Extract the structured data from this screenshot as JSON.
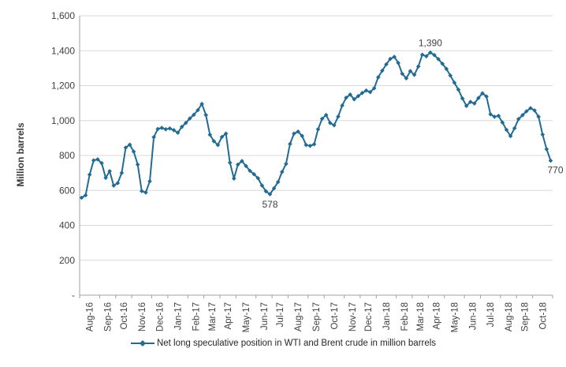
{
  "colors": {
    "line": "#226b93",
    "grid": "#d9d9d9",
    "axis": "#a0a0a0",
    "text": "#3f3f3f",
    "annotation": "#404040"
  },
  "legend": {
    "label": "Net long speculative position in WTI and Brent crude in million barrels"
  },
  "chart_data": {
    "type": "line",
    "title": "",
    "xlabel": "",
    "ylabel": "Million barrels",
    "ylim": [
      0,
      1600
    ],
    "ytick_step": 200,
    "ytick_labels": [
      "-",
      "200",
      "400",
      "600",
      "800",
      "1,000",
      "1,200",
      "1,400",
      "1,600"
    ],
    "grid": true,
    "legend_position": "bottom",
    "x_axis": {
      "unit": "weekly data grouped by month",
      "tick_labels": [
        "Aug-16",
        "Sep-16",
        "Oct-16",
        "Nov-16",
        "Dec-16",
        "Jan-17",
        "Feb-17",
        "Mar-17",
        "Apr-17",
        "May-17",
        "Jun-17",
        "Jul-17",
        "Aug-17",
        "Sep-17",
        "Oct-17",
        "Nov-17",
        "Dec-17",
        "Jan-18",
        "Feb-18",
        "Mar-18",
        "Apr-18",
        "May-18",
        "Jun-18",
        "Jul-18",
        "Aug-18",
        "Sep-18",
        "Oct-18"
      ],
      "points_per_month": [
        5,
        4,
        4,
        5,
        4,
        5,
        4,
        4,
        4,
        5,
        4,
        4,
        5,
        4,
        5,
        4,
        4,
        5,
        4,
        4,
        4,
        5,
        4,
        5,
        4,
        4,
        5
      ]
    },
    "series": [
      {
        "name": "Net long speculative position in WTI and Brent crude in million barrels",
        "color": "#226b93",
        "marker": "diamond",
        "values": [
          558,
          572,
          690,
          772,
          778,
          756,
          672,
          710,
          628,
          642,
          700,
          845,
          862,
          822,
          748,
          596,
          588,
          652,
          905,
          952,
          958,
          950,
          955,
          945,
          930,
          964,
          986,
          1012,
          1033,
          1060,
          1095,
          1032,
          919,
          882,
          860,
          906,
          925,
          759,
          668,
          748,
          768,
          740,
          712,
          693,
          670,
          628,
          595,
          578,
          612,
          648,
          706,
          752,
          866,
          925,
          937,
          912,
          860,
          855,
          864,
          950,
          1010,
          1032,
          986,
          973,
          1023,
          1086,
          1131,
          1149,
          1122,
          1140,
          1158,
          1172,
          1163,
          1185,
          1248,
          1286,
          1322,
          1353,
          1365,
          1330,
          1268,
          1242,
          1283,
          1262,
          1310,
          1377,
          1368,
          1390,
          1375,
          1352,
          1325,
          1296,
          1258,
          1217,
          1177,
          1127,
          1084,
          1107,
          1098,
          1129,
          1156,
          1138,
          1036,
          1022,
          1027,
          989,
          947,
          911,
          956,
          1009,
          1031,
          1053,
          1071,
          1058,
          1022,
          920,
          836,
          770
        ]
      }
    ],
    "annotations": [
      {
        "text": "1,390",
        "point_index": 87,
        "position": "above"
      },
      {
        "text": "578",
        "point_index": 47,
        "position": "below"
      },
      {
        "text": "770",
        "point_index": 117,
        "position": "below-right"
      }
    ]
  }
}
